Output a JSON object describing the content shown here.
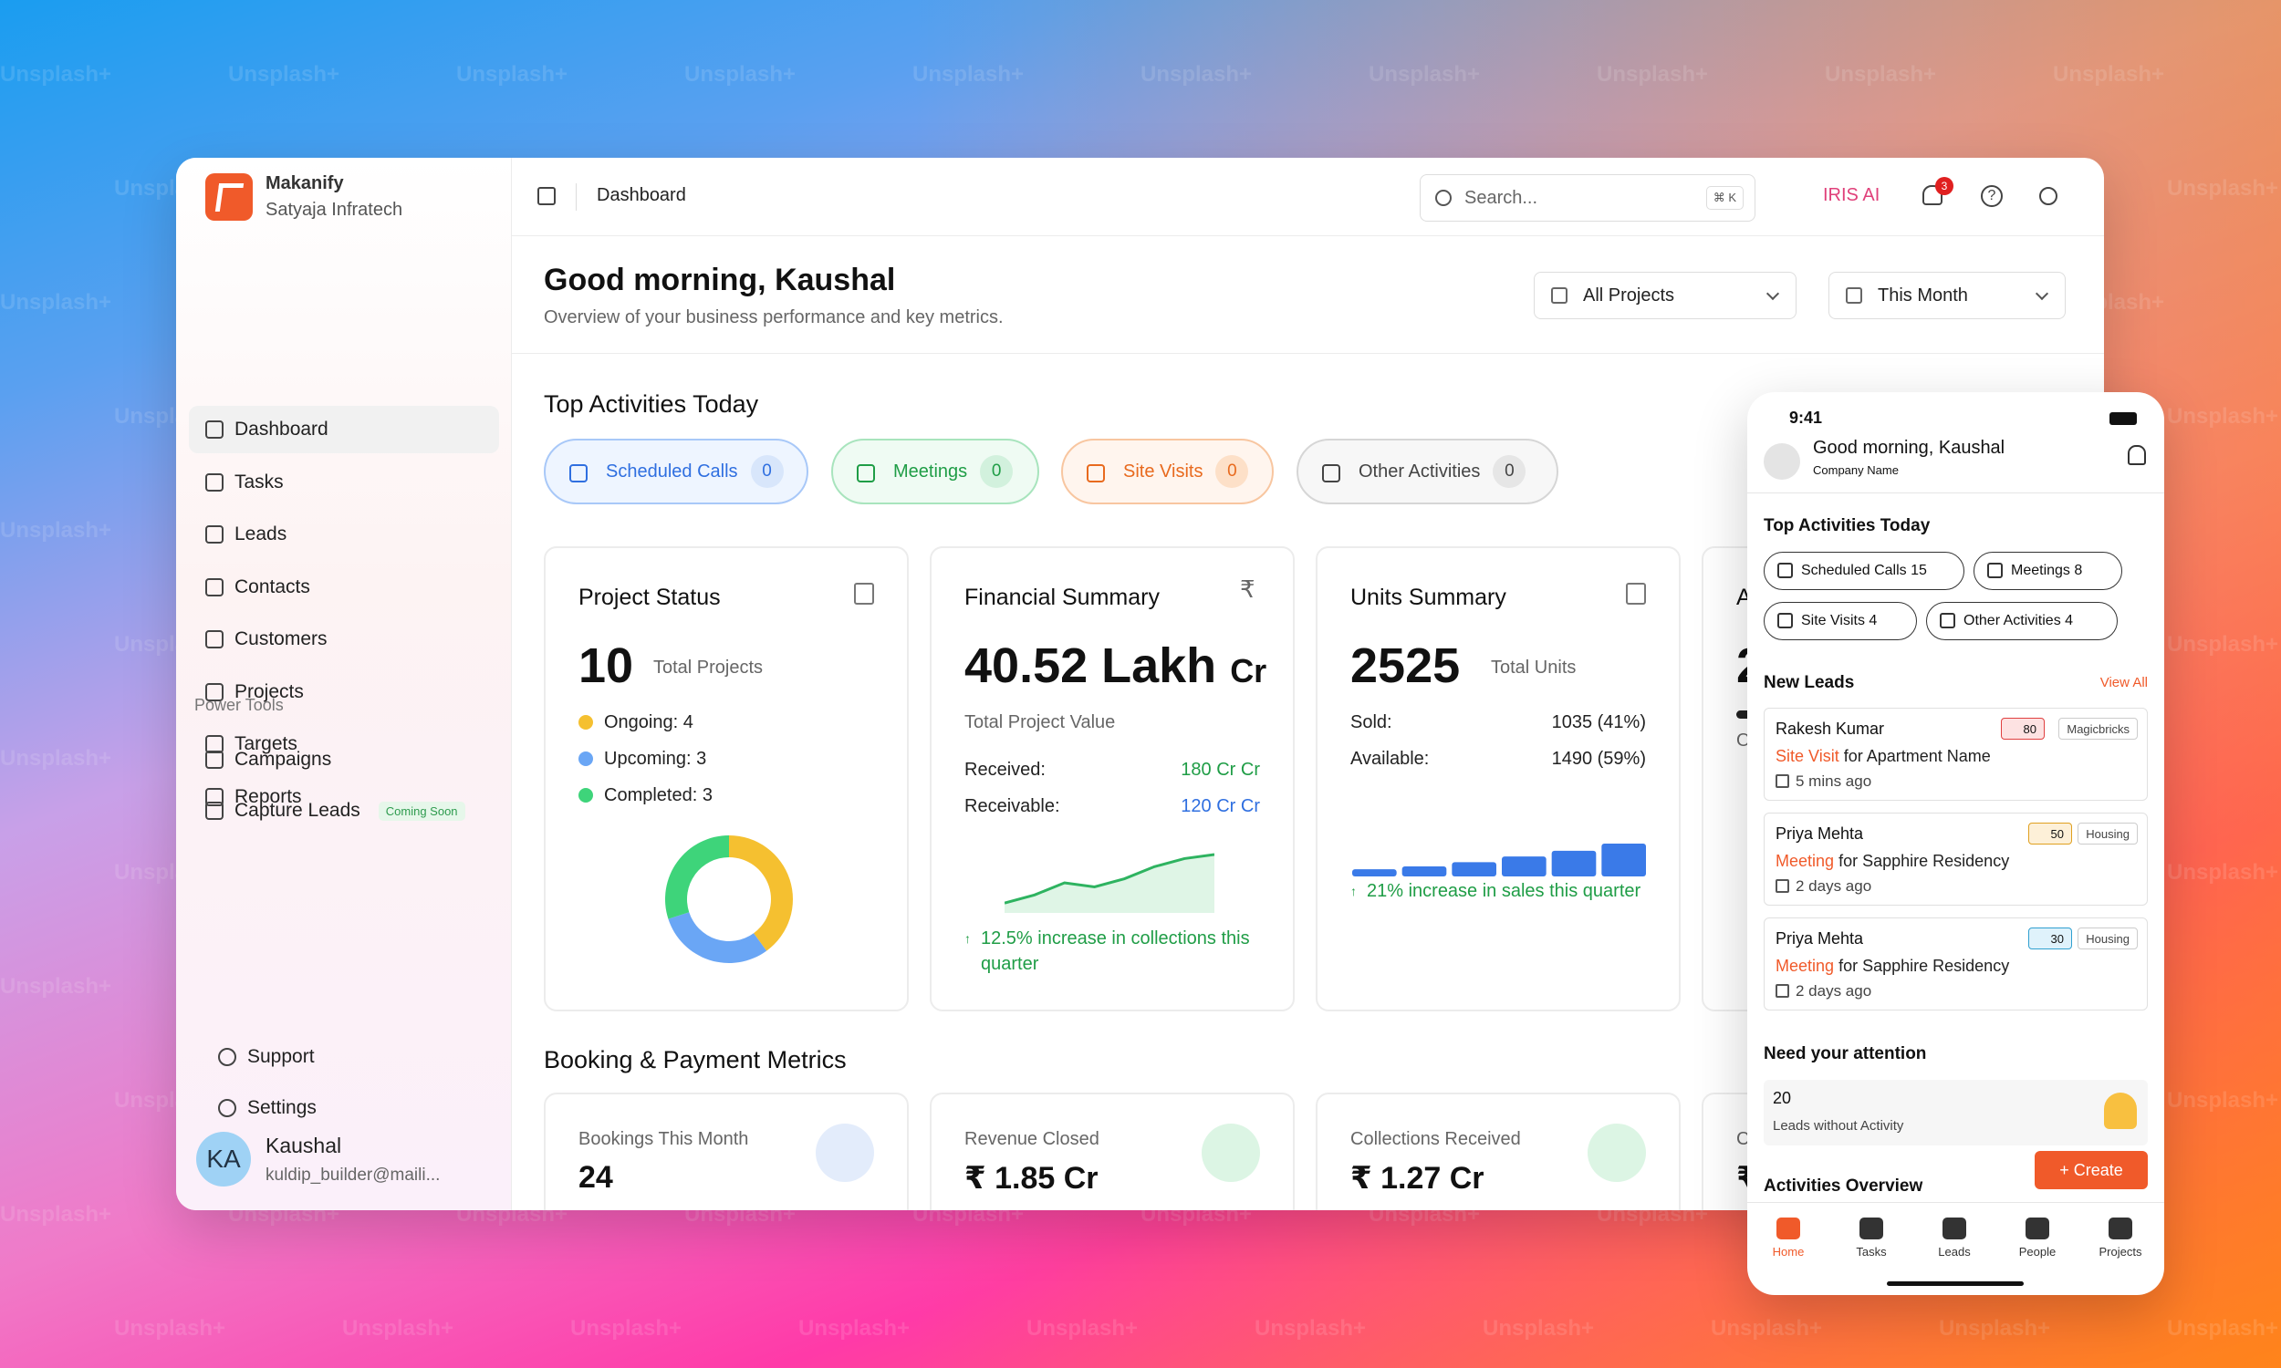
{
  "watermark": "Unsplash+",
  "sidebar": {
    "org_name": "Makanify",
    "org_sub": "Satyaja Infratech",
    "items": [
      {
        "label": "Dashboard",
        "icon": "home-icon"
      },
      {
        "label": "Tasks",
        "icon": "tasks-icon"
      },
      {
        "label": "Leads",
        "icon": "leads-icon"
      },
      {
        "label": "Contacts",
        "icon": "contacts-icon"
      },
      {
        "label": "Customers",
        "icon": "customers-icon"
      },
      {
        "label": "Projects",
        "icon": "projects-icon"
      },
      {
        "label": "Targets",
        "icon": "target-icon"
      },
      {
        "label": "Reports",
        "icon": "reports-icon"
      }
    ],
    "section": "Power Tools",
    "campaigns": "Campaigns",
    "capture": "Capture Leads",
    "coming_soon": "Coming Soon",
    "support": "Support",
    "settings": "Settings",
    "user_initials": "KA",
    "user_name": "Kaushal",
    "user_email": "kuldip_builder@maili..."
  },
  "topbar": {
    "breadcrumb": "Dashboard",
    "search_placeholder": "Search...",
    "shortcut": "⌘ K",
    "iris": "IRIS AI",
    "notif_count": "3"
  },
  "header": {
    "greeting": "Good morning, Kaushal",
    "subtitle": "Overview of your business performance and key metrics.",
    "projects_filter": "All Projects",
    "period_filter": "This Month"
  },
  "activities": {
    "title": "Top Activities Today",
    "items": [
      {
        "label": "Scheduled Calls",
        "count": "0"
      },
      {
        "label": "Meetings",
        "count": "0"
      },
      {
        "label": "Site Visits",
        "count": "0"
      },
      {
        "label": "Other Activities",
        "count": "0"
      }
    ]
  },
  "project_status": {
    "title": "Project Status",
    "total": "10",
    "total_label": "Total Projects",
    "ongoing": "Ongoing: 4",
    "upcoming": "Upcoming: 3",
    "completed": "Completed: 3"
  },
  "financial": {
    "title": "Financial Summary",
    "value": "40.52 Lakh",
    "unit": "Cr",
    "label": "Total Project Value",
    "received_label": "Received:",
    "received": "180 Cr Cr",
    "receivable_label": "Receivable:",
    "receivable": "120 Cr Cr",
    "note": "12.5% increase in collections this quarter"
  },
  "units": {
    "title": "Units Summary",
    "total": "2525",
    "total_label": "Total Units",
    "sold_label": "Sold:",
    "sold": "1035 (41%)",
    "available_label": "Available:",
    "available": "1490 (59%)",
    "note": "21% increase in sales this quarter"
  },
  "partial": {
    "a": "A",
    "two": "2",
    "o": "O"
  },
  "booking": {
    "title": "Booking & Payment Metrics",
    "items": [
      {
        "label": "Bookings This Month",
        "value": "24"
      },
      {
        "label": "Revenue Closed",
        "value": "₹ 1.85 Cr"
      },
      {
        "label": "Collections Received",
        "value": "₹ 1.27 Cr"
      }
    ],
    "partial_c": "C",
    "partial_r": "₹"
  },
  "phone": {
    "time": "9:41",
    "greeting": "Good morning, Kaushal",
    "company": "Company Name",
    "activities_title": "Top Activities Today",
    "chips": [
      {
        "label": "Scheduled Calls",
        "count": "15"
      },
      {
        "label": "Meetings",
        "count": "8"
      },
      {
        "label": "Site Visits",
        "count": "4"
      },
      {
        "label": "Other Activities",
        "count": "4"
      }
    ],
    "new_leads": "New Leads",
    "view_all": "View All",
    "leads": [
      {
        "name": "Rakesh Kumar",
        "score": "80",
        "source": "Magicbricks",
        "activity": "Site Visit",
        "for": "for",
        "place": "Apartment Name",
        "time": "5 mins ago"
      },
      {
        "name": "Priya Mehta",
        "score": "50",
        "source": "Housing",
        "activity": "Meeting",
        "for": "for",
        "place": "Sapphire Residency",
        "time": "2 days ago"
      },
      {
        "name": "Priya Mehta",
        "score": "30",
        "source": "Housing",
        "activity": "Meeting",
        "for": "for",
        "place": "Sapphire Residency",
        "time": "2 days ago"
      }
    ],
    "attention_title": "Need your attention",
    "attention_count": "20",
    "attention_label": "Leads without Activity",
    "create": "+ Create",
    "overview": "Activities Overview",
    "tabs": [
      "Home",
      "Tasks",
      "Leads",
      "People",
      "Projects"
    ]
  },
  "chart_data": [
    {
      "type": "pie",
      "title": "Project Status",
      "categories": [
        "Ongoing",
        "Upcoming",
        "Completed"
      ],
      "values": [
        4,
        3,
        3
      ],
      "colors": [
        "#f5c030",
        "#6aa6f5",
        "#3ed47a"
      ]
    },
    {
      "type": "bar",
      "title": "Units Summary",
      "values": [
        1,
        1.4,
        2,
        2.8,
        3.6,
        4.6
      ],
      "color": "#3a7ae8"
    },
    {
      "type": "area",
      "title": "Financial Summary",
      "values": [
        2,
        4,
        7,
        6,
        8,
        11,
        13,
        14
      ],
      "color": "#2eb360"
    }
  ]
}
